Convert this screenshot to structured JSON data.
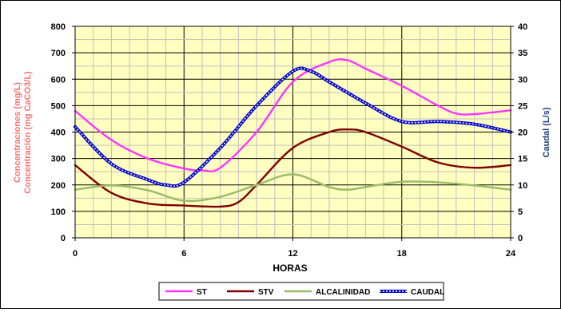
{
  "chart_data": {
    "type": "line",
    "xlabel": "HORAS",
    "ylabel_left_line1": "Concentraciones (mg/L)",
    "ylabel_left_line2": "Concentración (mg CaCO3/L)",
    "ylabel_right": "Caudal (L/s)",
    "x_ticks": [
      "0",
      "6",
      "12",
      "18",
      "24"
    ],
    "y_left_ticks": [
      "0",
      "100",
      "200",
      "300",
      "400",
      "500",
      "600",
      "700",
      "800"
    ],
    "y_right_ticks": [
      "0",
      "5",
      "10",
      "15",
      "20",
      "25",
      "30",
      "35",
      "40"
    ],
    "xlim": [
      0,
      24
    ],
    "ylim_left": [
      0,
      800
    ],
    "ylim_right": [
      0,
      40
    ],
    "grid": true,
    "legend_position": "bottom",
    "colors": {
      "plot_background": "#FFFFC0",
      "grid": "#C0C0C0",
      "left_label": "#FF6F6F",
      "right_label": "#1F3F7F"
    },
    "series": [
      {
        "name": "ST",
        "axis": "left",
        "color": "#FF33FF",
        "x": [
          0,
          2,
          4,
          6,
          7,
          8,
          10,
          12,
          14,
          15,
          16,
          18,
          20,
          21,
          22,
          24
        ],
        "y": [
          480,
          370,
          300,
          262,
          255,
          265,
          400,
          590,
          665,
          672,
          640,
          575,
          500,
          470,
          468,
          482
        ]
      },
      {
        "name": "STV",
        "axis": "left",
        "color": "#800000",
        "x": [
          0,
          2,
          4,
          6,
          8,
          9,
          10,
          12,
          14,
          15,
          16,
          18,
          20,
          22,
          24
        ],
        "y": [
          275,
          170,
          130,
          122,
          118,
          135,
          200,
          340,
          400,
          410,
          400,
          345,
          285,
          265,
          275
        ]
      },
      {
        "name": "ALCALINIDAD",
        "axis": "left",
        "color": "#99BB66",
        "x": [
          0,
          2,
          4,
          6,
          8,
          10,
          12,
          14,
          15,
          16,
          18,
          20,
          22,
          24
        ],
        "y": [
          182,
          198,
          180,
          140,
          155,
          200,
          240,
          192,
          182,
          192,
          212,
          210,
          198,
          182
        ]
      },
      {
        "name": "CAUDAL",
        "axis": "right",
        "color": "#0000CC",
        "x": [
          0,
          2,
          4,
          5,
          6,
          8,
          10,
          12,
          13,
          14,
          16,
          18,
          20,
          22,
          24
        ],
        "y": [
          21,
          14,
          11,
          10,
          10.5,
          17,
          25,
          31.5,
          31.5,
          29.5,
          25.5,
          22,
          22,
          21.5,
          20
        ]
      }
    ]
  }
}
